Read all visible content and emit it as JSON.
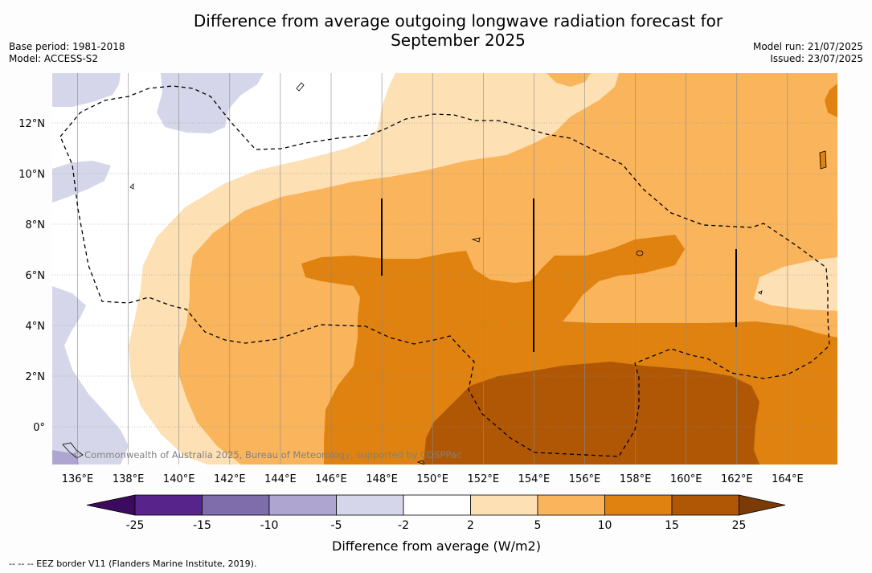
{
  "header": {
    "title_line1": "Difference from average outgoing longwave radiation forecast for",
    "title_line2": "September 2025",
    "base_period": "Base period: 1981-2018",
    "model": "Model: ACCESS-S2",
    "model_run": "Model run: 21/07/2025",
    "issued": "Issued: 23/07/2025"
  },
  "map": {
    "copyright": "© Commonwealth of Australia 2025, Bureau of Meteorology, supported by COSPPac",
    "lon_labels": [
      "136°E",
      "138°E",
      "140°E",
      "142°E",
      "144°E",
      "146°E",
      "148°E",
      "150°E",
      "152°E",
      "154°E",
      "156°E",
      "158°E",
      "160°E",
      "162°E",
      "164°E"
    ],
    "lat_labels": [
      "12°N",
      "10°N",
      "8°N",
      "6°N",
      "4°N",
      "2°N",
      "0°"
    ],
    "lon_range": [
      135,
      166
    ],
    "lat_range": [
      -1.5,
      14
    ],
    "overlays": [
      "dashed EEZ border",
      "solid vertical bars"
    ]
  },
  "colorbar": {
    "label": "Difference from average (W/m2)",
    "ticks": [
      "-25",
      "-15",
      "-10",
      "-5",
      "-2",
      "2",
      "5",
      "10",
      "15",
      "25"
    ],
    "colors": [
      "#3c0a5e",
      "#56248a",
      "#7e6cab",
      "#aea6d0",
      "#d6d6ea",
      "#ffffff",
      "#fde0b4",
      "#f9b45c",
      "#e0820f",
      "#b05705",
      "#7a3b05"
    ]
  },
  "legend_footnote": "--  --  -- EEZ border V11 (Flanders Marine Institute, 2019)."
}
